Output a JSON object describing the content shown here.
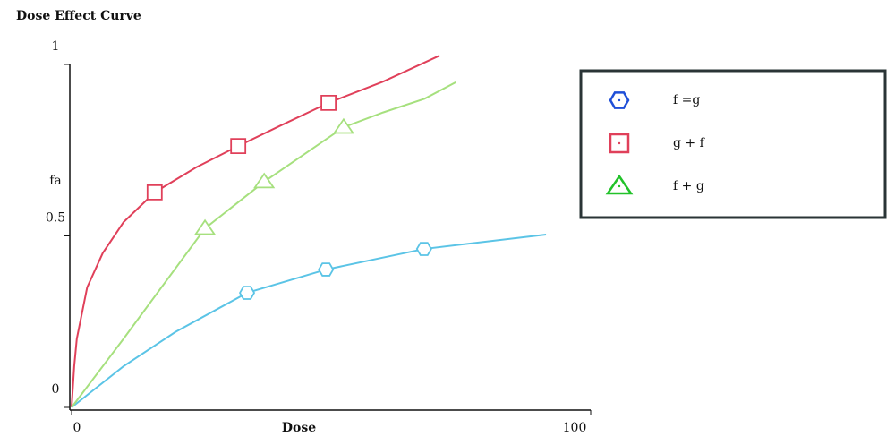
{
  "chart_data": {
    "type": "line",
    "title": "Dose Effect Curve",
    "xlabel": "Dose",
    "ylabel": "fa",
    "xlim": [
      0,
      100
    ],
    "xticks": [
      0,
      100
    ],
    "ylim": [
      0,
      1
    ],
    "yticks": [
      0,
      0.5,
      1
    ],
    "legend_position": "upper right",
    "series": [
      {
        "name": "f =g",
        "color": "#5bc4e6",
        "legend_color": "#1f4fd8",
        "marker": "hexagon",
        "points": {
          "x": [
            33.8,
            49.0,
            67.9
          ],
          "values": [
            0.334,
            0.402,
            0.462
          ]
        },
        "curve": {
          "x": [
            0,
            5,
            10,
            20,
            33.8,
            49.0,
            67.9,
            91.4
          ],
          "values": [
            0,
            0.06,
            0.12,
            0.22,
            0.334,
            0.402,
            0.462,
            0.504
          ]
        }
      },
      {
        "name": "g + f",
        "color": "#e0405a",
        "legend_color": "#e0405a",
        "marker": "square",
        "points": {
          "x": [
            16.0,
            32.1,
            49.5
          ],
          "values": [
            0.627,
            0.762,
            0.888
          ]
        },
        "curve": {
          "x": [
            0,
            0.5,
            1,
            3,
            6,
            10,
            16.0,
            24,
            32.1,
            40,
            49.5,
            60,
            70.9
          ],
          "values": [
            0,
            0.12,
            0.2,
            0.35,
            0.45,
            0.54,
            0.627,
            0.7,
            0.762,
            0.82,
            0.888,
            0.95,
            1.026
          ]
        }
      },
      {
        "name": "f + g",
        "color": "#a6e07e",
        "legend_color": "#22c22a",
        "marker": "triangle",
        "points": {
          "x": [
            25.7,
            37.1,
            52.4
          ],
          "values": [
            0.522,
            0.658,
            0.817
          ]
        },
        "curve": {
          "x": [
            0,
            10,
            25.7,
            37.1,
            45,
            52.4,
            60,
            68,
            74.0
          ],
          "values": [
            0,
            0.2,
            0.522,
            0.658,
            0.74,
            0.817,
            0.86,
            0.9,
            0.948
          ]
        }
      }
    ]
  }
}
